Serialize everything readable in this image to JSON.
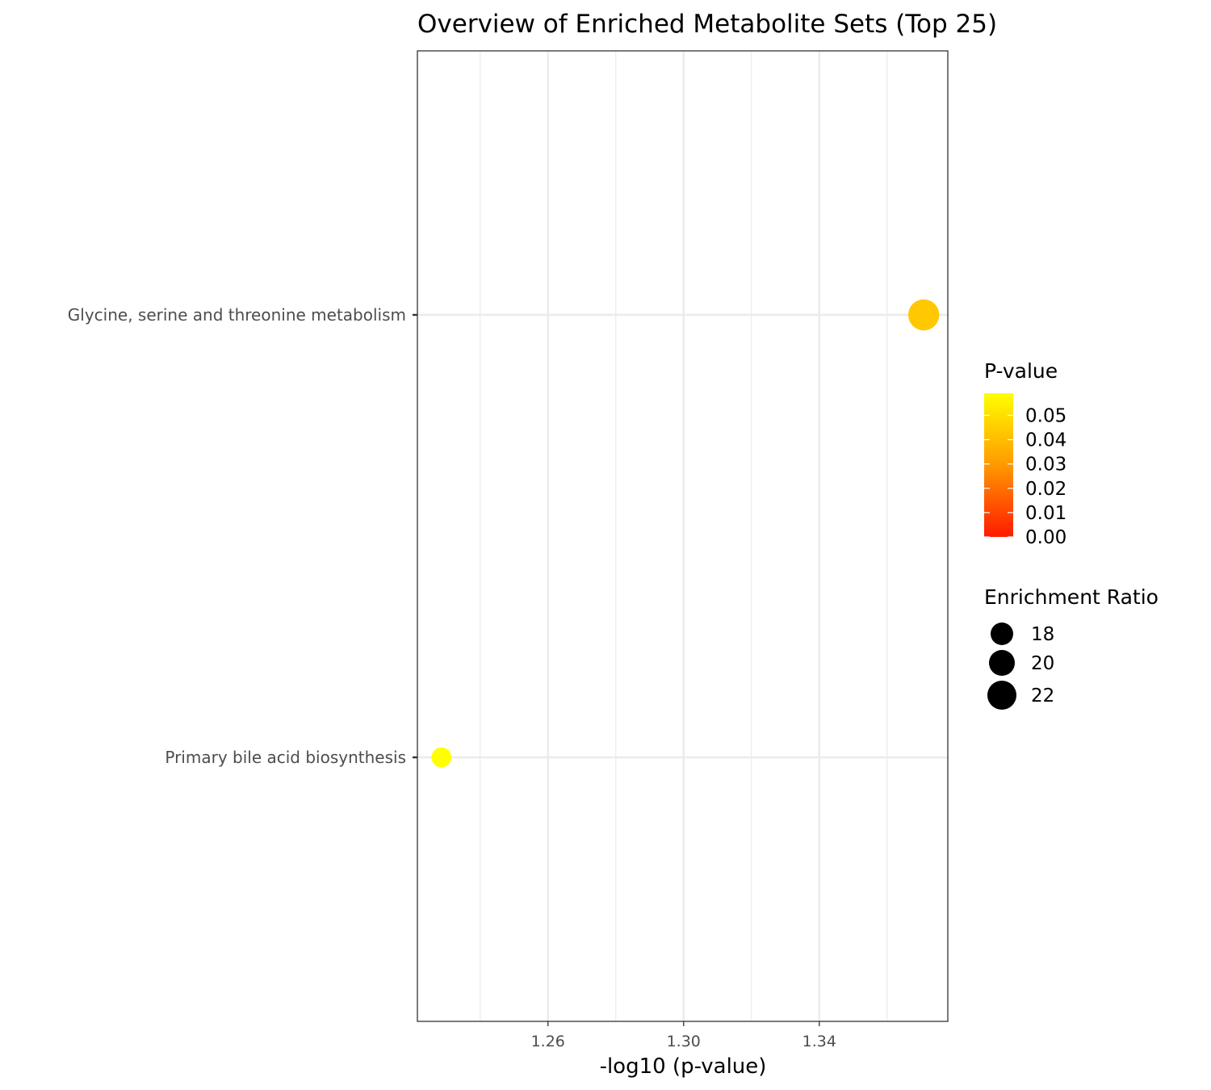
{
  "chart_data": {
    "type": "scatter",
    "title": "Overview of Enriched Metabolite Sets (Top 25)",
    "xlabel": "-log10 (p-value)",
    "ylabel": "",
    "xlim": [
      1.2215,
      1.3779
    ],
    "x_ticks": [
      1.26,
      1.3,
      1.34
    ],
    "x_tick_labels": [
      "1.26",
      "1.30",
      "1.34"
    ],
    "grid": true,
    "legend_position": "right",
    "categories": [
      "Glycine, serine and threonine metabolism",
      "Primary bile acid biosynthesis"
    ],
    "points": [
      {
        "label": "Glycine, serine and threonine metabolism",
        "x": 1.3708,
        "p_value": 0.0426,
        "enrichment_ratio": 23.2,
        "color": "#ffc800"
      },
      {
        "label": "Primary bile acid biosynthesis",
        "x": 1.2286,
        "p_value": 0.0591,
        "enrichment_ratio": 16.4,
        "color": "#ffff00"
      }
    ],
    "color_legend": {
      "title": "P-value",
      "range": [
        0.0,
        0.0591
      ],
      "ticks": [
        0.0,
        0.01,
        0.02,
        0.03,
        0.04,
        0.05
      ],
      "tick_labels": [
        "0.00",
        "0.01",
        "0.02",
        "0.03",
        "0.04",
        "0.05"
      ],
      "low_color": "#ff1a00",
      "mid_color": "#ff9900",
      "high_color": "#ffff00"
    },
    "size_legend": {
      "title": "Enrichment Ratio",
      "values": [
        18,
        20,
        22
      ],
      "labels": [
        "18",
        "20",
        "22"
      ],
      "color": "#000000"
    }
  }
}
